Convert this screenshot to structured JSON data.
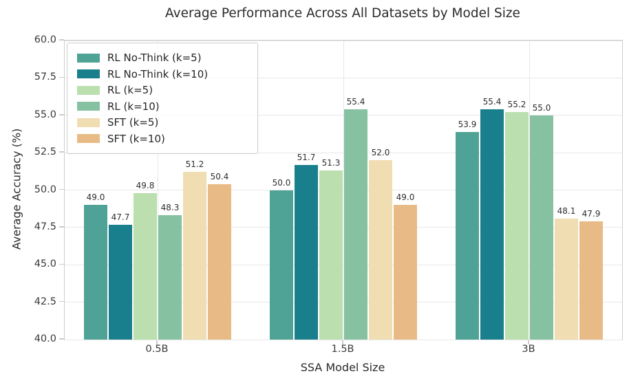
{
  "chart_data": {
    "type": "bar",
    "title": "Average Performance Across All Datasets by Model Size",
    "xlabel": "SSA Model Size",
    "ylabel": "Average Accuracy (%)",
    "categories": [
      "0.5B",
      "1.5B",
      "3B"
    ],
    "series": [
      {
        "name": "RL No-Think (k=5)",
        "color": "#4FA396",
        "values": [
          49.0,
          50.0,
          53.9
        ]
      },
      {
        "name": "RL No-Think (k=10)",
        "color": "#1A7F8C",
        "values": [
          47.7,
          51.7,
          55.4
        ]
      },
      {
        "name": "RL (k=5)",
        "color": "#BBDFAE",
        "values": [
          49.8,
          51.3,
          55.2
        ]
      },
      {
        "name": "RL (k=10)",
        "color": "#86C2A2",
        "values": [
          48.3,
          55.4,
          55.0
        ]
      },
      {
        "name": "SFT (k=5)",
        "color": "#F0DDB2",
        "values": [
          51.2,
          52.0,
          48.1
        ]
      },
      {
        "name": "SFT (k=10)",
        "color": "#E8BB86",
        "values": [
          50.4,
          49.0,
          47.9
        ]
      }
    ],
    "ylim": [
      40.0,
      60.0
    ],
    "ytick_labels": [
      "40.0",
      "42.5",
      "45.0",
      "47.5",
      "50.0",
      "52.5",
      "55.0",
      "57.5",
      "60.0"
    ],
    "grid": true,
    "legend_position": "upper-left",
    "value_label_decimals": 1,
    "colors": {
      "grid": "#e7e7e7",
      "spine": "#cccccc",
      "text": "#2a2a2a",
      "tick_text": "#3a3a3a"
    }
  }
}
